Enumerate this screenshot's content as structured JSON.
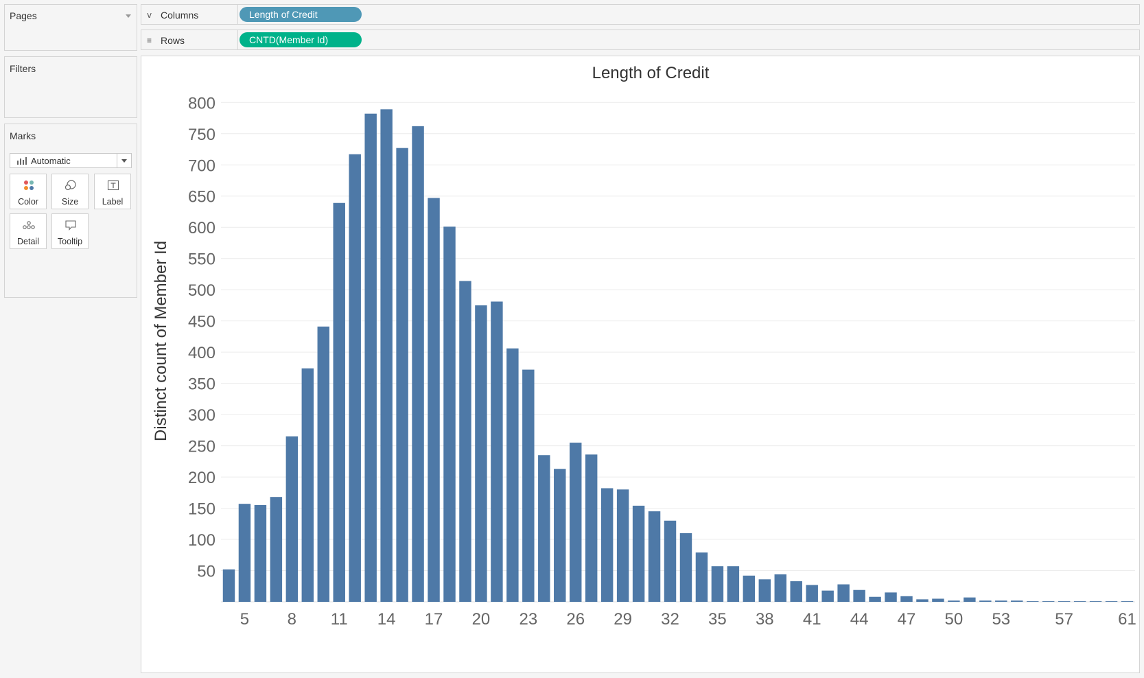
{
  "pages": {
    "title": "Pages"
  },
  "filters": {
    "title": "Filters"
  },
  "marks": {
    "title": "Marks",
    "mark_type": "Automatic",
    "buttons": {
      "color": "Color",
      "size": "Size",
      "label": "Label",
      "detail": "Detail",
      "tooltip": "Tooltip"
    }
  },
  "shelves": {
    "columns": {
      "label": "Columns",
      "pill": "Length of Credit",
      "icon": "columns-icon"
    },
    "rows": {
      "label": "Rows",
      "pill": "CNTD(Member Id)",
      "icon": "rows-icon"
    }
  },
  "colors": {
    "bar": "#4e79a7",
    "columns_pill": "#4f98b6",
    "rows_pill": "#00b28a"
  },
  "chart_data": {
    "type": "bar",
    "title": "Length of Credit",
    "xlabel": "",
    "ylabel": "Distinct count of Member Id",
    "ylim": [
      0,
      830
    ],
    "yticks": [
      50,
      100,
      150,
      200,
      250,
      300,
      350,
      400,
      450,
      500,
      550,
      600,
      650,
      700,
      750,
      800
    ],
    "xticks_shown": [
      "5",
      "8",
      "11",
      "14",
      "17",
      "20",
      "23",
      "26",
      "29",
      "32",
      "35",
      "38",
      "41",
      "44",
      "47",
      "50",
      "53",
      "57",
      "61"
    ],
    "grid": "horizontal",
    "categories": [
      4,
      5,
      6,
      7,
      8,
      9,
      10,
      11,
      12,
      13,
      14,
      15,
      16,
      17,
      18,
      19,
      20,
      21,
      22,
      23,
      24,
      25,
      26,
      27,
      28,
      29,
      30,
      31,
      32,
      33,
      34,
      35,
      36,
      37,
      38,
      39,
      40,
      41,
      42,
      43,
      44,
      45,
      46,
      47,
      48,
      49,
      50,
      51,
      52,
      53,
      54,
      55,
      56,
      57,
      58,
      59,
      60,
      61
    ],
    "values": [
      52,
      157,
      155,
      168,
      265,
      374,
      441,
      639,
      717,
      782,
      789,
      727,
      762,
      647,
      601,
      514,
      475,
      481,
      406,
      372,
      235,
      213,
      255,
      236,
      182,
      180,
      154,
      145,
      130,
      110,
      79,
      57,
      57,
      42,
      36,
      44,
      33,
      27,
      18,
      28,
      19,
      8,
      15,
      9,
      4,
      5,
      2,
      7,
      2,
      2,
      2,
      1,
      1,
      1,
      1,
      1,
      1,
      1
    ]
  }
}
